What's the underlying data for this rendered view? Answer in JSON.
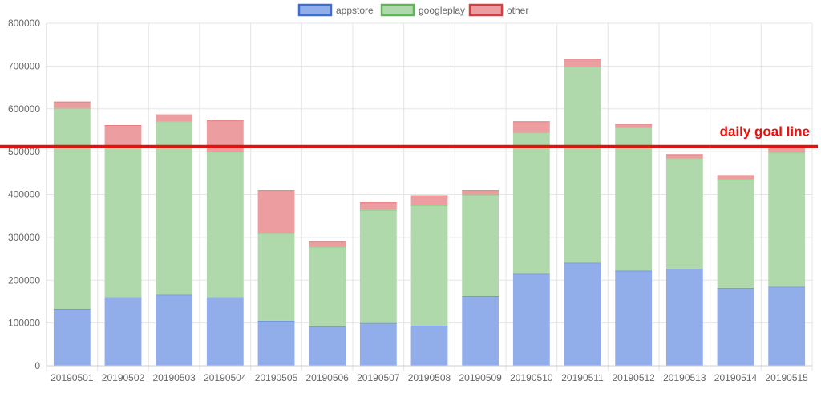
{
  "chart_data": {
    "type": "bar",
    "stacked": true,
    "categories": [
      "20190501",
      "20190502",
      "20190503",
      "20190504",
      "20190505",
      "20190506",
      "20190507",
      "20190508",
      "20190509",
      "20190510",
      "20190511",
      "20190512",
      "20190513",
      "20190514",
      "20190515"
    ],
    "series": [
      {
        "name": "appstore",
        "color": "#91aeea",
        "border": "#3a6fd8",
        "values": [
          133000,
          160000,
          166000,
          160000,
          105000,
          92000,
          100000,
          94000,
          163000,
          215000,
          241000,
          222000,
          227000,
          182000,
          185000
        ]
      },
      {
        "name": "googleplay",
        "color": "#b0d9ab",
        "border": "#5fb656",
        "values": [
          469000,
          350000,
          405000,
          340000,
          205000,
          186000,
          264000,
          281000,
          237000,
          330000,
          458000,
          335000,
          258000,
          253000,
          313000
        ]
      },
      {
        "name": "other",
        "color": "#eb9d9f",
        "border": "#dc3c3f",
        "values": [
          15000,
          52000,
          16000,
          73000,
          100000,
          13000,
          18000,
          23000,
          10000,
          26000,
          18000,
          8000,
          9000,
          10000,
          15000
        ]
      }
    ],
    "ylim": [
      0,
      800000
    ],
    "yticks": [
      "0",
      "100000",
      "200000",
      "300000",
      "400000",
      "500000",
      "600000",
      "700000",
      "800000"
    ],
    "grid": true,
    "legend_position": "top-center",
    "goal_line": {
      "label": "daily goal line",
      "value": 512000,
      "color": "#e8100d"
    }
  }
}
